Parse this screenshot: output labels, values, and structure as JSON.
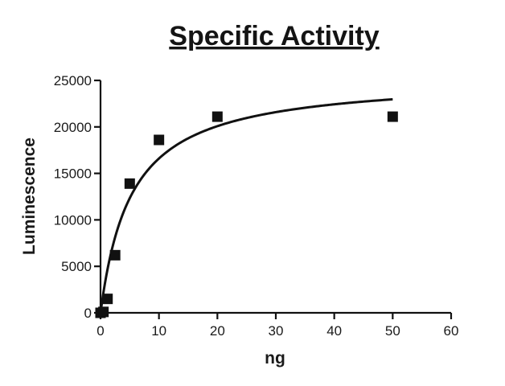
{
  "chart_data": {
    "type": "scatter",
    "title": "Specific Activity",
    "xlabel": "ng",
    "ylabel": "Luminescence",
    "xlim": [
      0,
      60
    ],
    "ylim": [
      0,
      25000
    ],
    "x_ticks": [
      0,
      10,
      20,
      30,
      40,
      50,
      60
    ],
    "y_ticks": [
      0,
      5000,
      10000,
      15000,
      20000,
      25000
    ],
    "x_tick_labels": [
      "0",
      "10",
      "20",
      "30",
      "40",
      "50",
      "60"
    ],
    "y_tick_labels": [
      "0",
      "5000",
      "10000",
      "15000",
      "20000",
      "25000"
    ],
    "grid": false,
    "legend": "none",
    "series": [
      {
        "type": "scatter",
        "marker": "square",
        "color": "#111111",
        "x": [
          0,
          0.5,
          1.2,
          2.5,
          5,
          10,
          20,
          50
        ],
        "y": [
          0,
          100,
          1500,
          6200,
          13900,
          18600,
          21100,
          21100
        ]
      },
      {
        "type": "line",
        "fit": "hyperbola",
        "color": "#111111",
        "vmax": 25400,
        "km": 5.3,
        "x_range": [
          0,
          50
        ]
      }
    ]
  }
}
